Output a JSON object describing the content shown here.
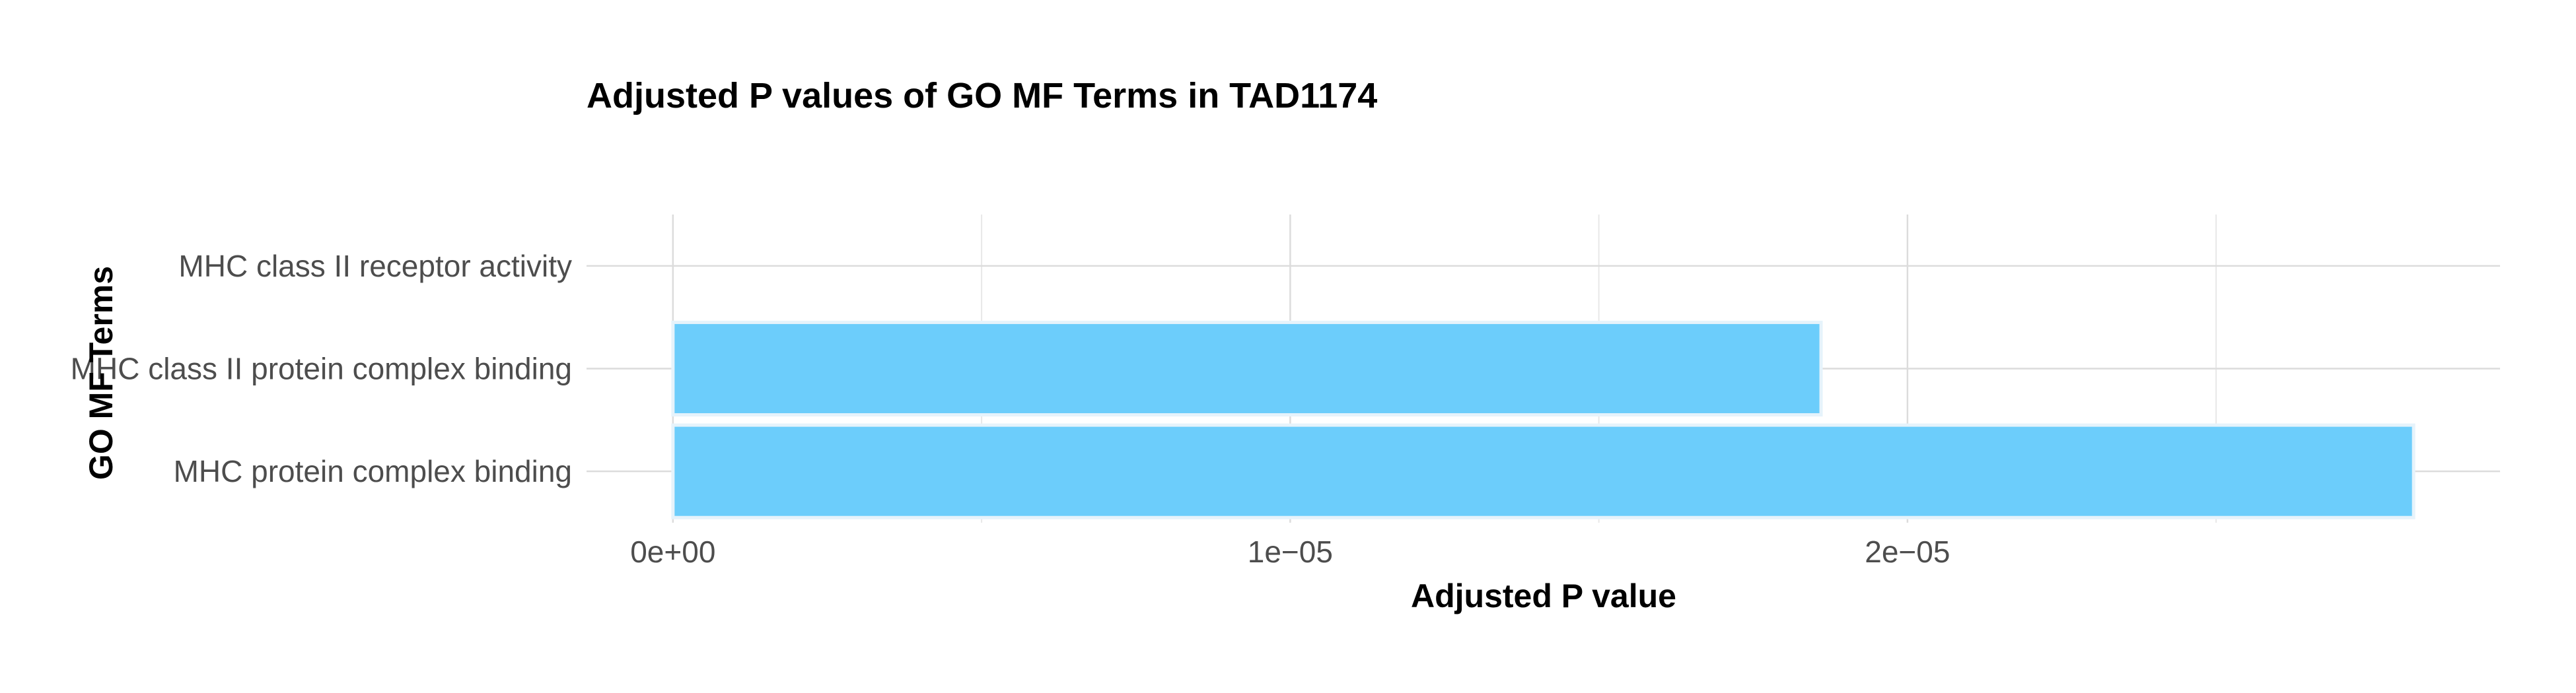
{
  "chart_data": {
    "type": "bar",
    "orientation": "horizontal",
    "title": "Adjusted P values of GO MF Terms in TAD1174",
    "xlabel": "Adjusted P value",
    "ylabel": "GO MF Terms",
    "categories": [
      "MHC class II receptor activity",
      "MHC class II protein complex binding",
      "MHC protein complex binding"
    ],
    "values": [
      0,
      1.86e-05,
      2.82e-05
    ],
    "xlim": [
      -1.4e-06,
      2.96e-05
    ],
    "x_ticks": [
      0,
      1e-05,
      2e-05
    ],
    "x_tick_labels": [
      "0e+00",
      "1e−05",
      "2e−05"
    ],
    "x_minor_ticks": [
      5e-06,
      1.5e-05,
      2.5e-05
    ],
    "bar_color": "#6ccdfb",
    "grid": true,
    "legend": "none"
  }
}
